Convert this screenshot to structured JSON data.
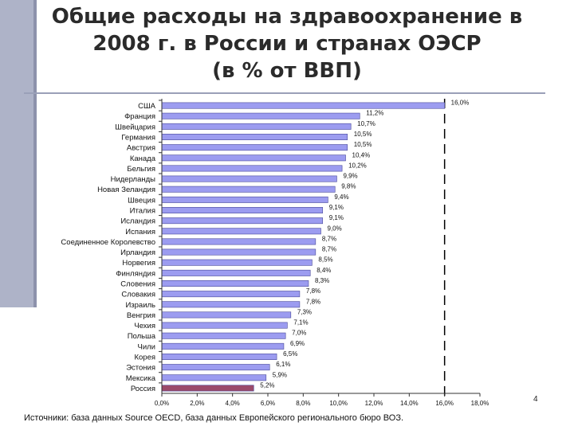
{
  "title": {
    "line1": "Общие расходы на здравоохранение в",
    "line2": "2008 г. в России и странах ОЭСР",
    "line3": "(в % от ВВП)"
  },
  "source": "Источники: база данных Source OECD, база данных Европейского регионального бюро ВОЗ.",
  "page_number": "4",
  "colors": {
    "bar": "#9c9cf0",
    "bar_stroke": "#4a4a9a",
    "highlight": "#9b4a6a",
    "title_text": "#2b2b2b",
    "accent_bar": "#aeb3c8"
  },
  "chart_data": {
    "type": "bar",
    "orientation": "horizontal",
    "categories": [
      "США",
      "Франция",
      "Швейцария",
      "Германия",
      "Австрия",
      "Канада",
      "Бельгия",
      "Нидерланды",
      "Новая Зеландия",
      "Швеция",
      "Италия",
      "Исландия",
      "Испания",
      "Соединенное Королевство",
      "Ирландия",
      "Норвегия",
      "Финляндия",
      "Словения",
      "Словакия",
      "Израиль",
      "Венгрия",
      "Чехия",
      "Польша",
      "Чили",
      "Корея",
      "Эстония",
      "Мексика",
      "Россия"
    ],
    "values": [
      16.0,
      11.2,
      10.7,
      10.5,
      10.5,
      10.4,
      10.2,
      9.9,
      9.8,
      9.4,
      9.1,
      9.1,
      9.0,
      8.7,
      8.7,
      8.5,
      8.4,
      8.3,
      7.8,
      7.8,
      7.3,
      7.1,
      7.0,
      6.9,
      6.5,
      6.1,
      5.9,
      5.2
    ],
    "data_labels": [
      "16,0%",
      "11,2%",
      "10,7%",
      "10,5%",
      "10,5%",
      "10,4%",
      "10,2%",
      "9,9%",
      "9,8%",
      "9,4%",
      "9,1%",
      "9,1%",
      "9,0%",
      "8,7%",
      "8,7%",
      "8,5%",
      "8,4%",
      "8,3%",
      "7,8%",
      "7,8%",
      "7,3%",
      "7,1%",
      "7,0%",
      "6,9%",
      "6,5%",
      "6,1%",
      "5,9%",
      "5,2%"
    ],
    "highlight_category": "Россия",
    "x_ticks": [
      0,
      2,
      4,
      6,
      8,
      10,
      12,
      14,
      16,
      18
    ],
    "x_tick_labels": [
      "0,0%",
      "2,0%",
      "4,0%",
      "6,0%",
      "8,0%",
      "10,0%",
      "12,0%",
      "14,0%",
      "16,0%",
      "18,0%"
    ],
    "xlim": [
      0,
      18
    ],
    "reference_line": 16.0,
    "grid": false,
    "legend": "none"
  }
}
